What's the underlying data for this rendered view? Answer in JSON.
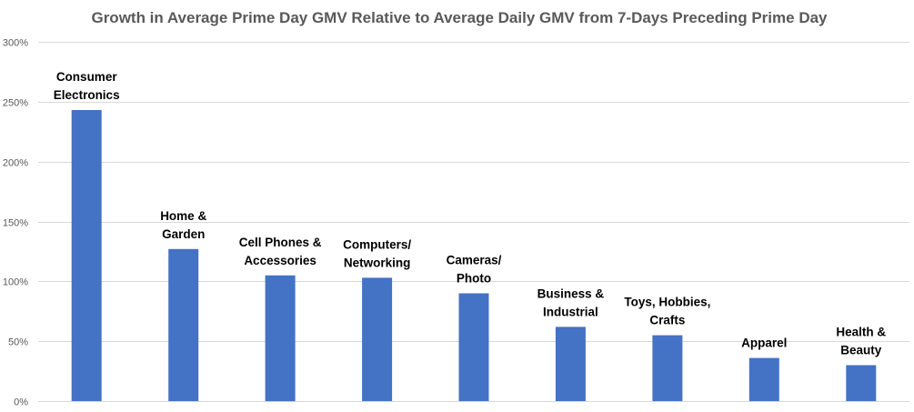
{
  "chart_data": {
    "type": "bar",
    "title": "Growth in Average Prime Day GMV Relative to Average Daily GMV from 7-Days Preceding Prime Day",
    "xlabel": "",
    "ylabel": "",
    "categories": [
      [
        "Consumer",
        "Electronics"
      ],
      [
        "Home &",
        "Garden"
      ],
      [
        "Cell Phones &",
        "Accessories"
      ],
      [
        "Computers/",
        "Networking"
      ],
      [
        "Cameras/",
        "Photo"
      ],
      [
        "Business &",
        "Industrial"
      ],
      [
        "Toys, Hobbies,",
        "Crafts"
      ],
      [
        "Apparel"
      ],
      [
        "Health &",
        "Beauty"
      ]
    ],
    "values": [
      243,
      127,
      105,
      103,
      90,
      62,
      55,
      36,
      30
    ],
    "ylim": [
      0,
      300
    ],
    "yticks": [
      0,
      50,
      100,
      150,
      200,
      250,
      300
    ],
    "ytick_labels": [
      "0%",
      "50%",
      "100%",
      "150%",
      "200%",
      "250%",
      "300%"
    ],
    "grid": true,
    "legend": "none",
    "colors": {
      "bar": "#4472c4",
      "grid": "#d9d9d9",
      "title": "#595959",
      "tick": "#595959",
      "label": "#000000"
    }
  }
}
